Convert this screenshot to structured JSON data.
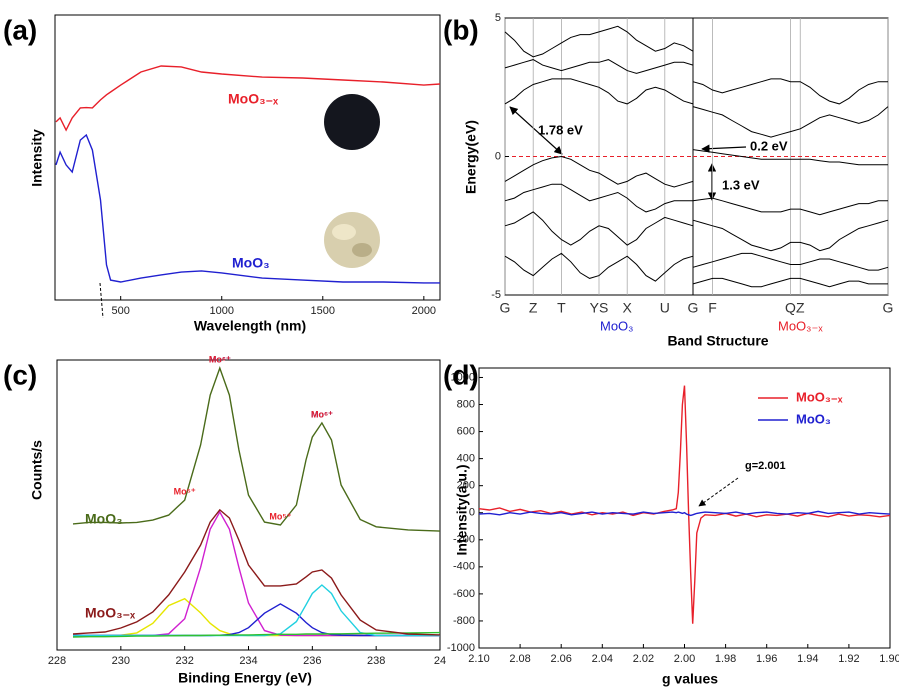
{
  "chart_data": [
    {
      "type": "line",
      "panel_label": "(a)",
      "xlabel": "Wavelength (nm)",
      "ylabel": "Intensity",
      "x": [
        180,
        200,
        230,
        260,
        300,
        330,
        360,
        400,
        430,
        450,
        500,
        600,
        700,
        800,
        900,
        1000,
        1200,
        1400,
        1600,
        1800,
        2000,
        2080
      ],
      "xlim": [
        175,
        2080
      ],
      "xticks": [
        500,
        1000,
        1500,
        2000
      ],
      "ylim": [
        0,
        100
      ],
      "series": [
        {
          "name": "MoO₃₋ₓ",
          "color": "#e8202a",
          "values": [
            62.5,
            63.9,
            59.6,
            63.9,
            67.4,
            67.5,
            67.4,
            70.2,
            72,
            73,
            75.4,
            80,
            82.1,
            81.8,
            80,
            79.3,
            78.2,
            77.9,
            77.2,
            76.5,
            75.4,
            75.8
          ]
        },
        {
          "name": "MoO₃",
          "color": "#2020d0",
          "values": [
            47.4,
            51.9,
            47.4,
            44.9,
            56.1,
            57.9,
            52.6,
            35.1,
            12.3,
            7,
            6.3,
            7.7,
            8.8,
            9.8,
            10.2,
            9.5,
            7.7,
            7,
            6.3,
            6.3,
            6,
            6
          ]
        }
      ]
    },
    {
      "type": "line",
      "panel_label": "(b)",
      "ylabel": "Energy(eV)",
      "categories": [
        "G",
        null,
        null,
        "Z",
        null,
        null,
        "T",
        null,
        null,
        null,
        "YS",
        null,
        null,
        "X",
        null,
        null,
        null,
        "U",
        null,
        null,
        "G"
      ],
      "ylim": [
        -5,
        5
      ],
      "yticks": [
        -5,
        0,
        5
      ],
      "fermi_level": 0,
      "subtitle": "MoO₃",
      "subtitle_color": "#2020d0",
      "annotations": [
        "1.78 eV"
      ],
      "series": [
        {
          "color": "#000000",
          "values": [
            1.9,
            2.1,
            2.4,
            2.6,
            2.7,
            2.8,
            2.8,
            2.8,
            2.7,
            2.6,
            2.5,
            2.3,
            2.0,
            1.9,
            2.1,
            2.4,
            2.5,
            2.4,
            2.2,
            2.0,
            1.9
          ]
        },
        {
          "color": "#000000",
          "values": [
            3.2,
            3.3,
            3.4,
            3.5,
            3.3,
            3.2,
            3.1,
            3.2,
            3.3,
            3.4,
            3.4,
            3.5,
            3.3,
            3.1,
            3.0,
            3.1,
            3.2,
            3.3,
            3.4,
            3.4,
            3.3
          ]
        },
        {
          "color": "#000000",
          "values": [
            4.5,
            4.2,
            3.8,
            3.6,
            3.7,
            3.9,
            4.1,
            4.3,
            4.4,
            4.4,
            4.5,
            4.6,
            4.7,
            4.5,
            4.2,
            4.0,
            3.8,
            3.9,
            4.1,
            4.0,
            3.8
          ]
        },
        {
          "color": "#000000",
          "values": [
            -0.9,
            -0.7,
            -0.5,
            -0.3,
            -0.15,
            -0.05,
            0,
            -0.1,
            -0.3,
            -0.5,
            -0.6,
            -0.8,
            -1.0,
            -0.9,
            -0.7,
            -0.6,
            -0.8,
            -1.0,
            -1.1,
            -1.0,
            -0.9
          ]
        },
        {
          "color": "#000000",
          "values": [
            -1.6,
            -1.5,
            -1.3,
            -1.2,
            -1.1,
            -1.0,
            -1.0,
            -1.2,
            -1.4,
            -1.6,
            -1.5,
            -1.4,
            -1.3,
            -1.5,
            -1.8,
            -2.0,
            -1.9,
            -1.7,
            -1.6,
            -1.6,
            -1.6
          ]
        },
        {
          "color": "#000000",
          "values": [
            -2.5,
            -2.4,
            -2.2,
            -2.0,
            -2.3,
            -2.7,
            -3.0,
            -3.2,
            -3.0,
            -2.7,
            -2.5,
            -2.6,
            -2.9,
            -3.2,
            -3.0,
            -2.6,
            -2.4,
            -2.2,
            -2.3,
            -2.4,
            -2.5
          ]
        },
        {
          "color": "#000000",
          "values": [
            -3.6,
            -3.8,
            -4.1,
            -4.3,
            -4.0,
            -3.7,
            -3.5,
            -3.8,
            -4.2,
            -4.4,
            -4.3,
            -4.0,
            -3.8,
            -3.6,
            -3.9,
            -4.3,
            -4.5,
            -4.2,
            -3.9,
            -3.7,
            -3.6
          ]
        }
      ]
    },
    {
      "type": "line",
      "xlabel": "Band Structure",
      "categories": [
        null,
        null,
        "F",
        null,
        null,
        null,
        null,
        null,
        null,
        null,
        "Q",
        "Z",
        null,
        null,
        null,
        null,
        null,
        null,
        null,
        null,
        "G"
      ],
      "ylim": [
        -5,
        5
      ],
      "fermi_level": 0,
      "subtitle": "MoO₃₋ₓ",
      "subtitle_color": "#e8202a",
      "annotations": [
        "0.2 eV",
        "1.3 eV"
      ],
      "series": [
        {
          "color": "#000000",
          "values": [
            2.7,
            2.6,
            2.4,
            2.3,
            2.4,
            2.5,
            2.6,
            2.7,
            2.8,
            2.8,
            2.7,
            2.7,
            2.5,
            2.2,
            2.0,
            1.9,
            2.1,
            2.4,
            2.6,
            2.7,
            2.7
          ]
        },
        {
          "color": "#000000",
          "values": [
            1.8,
            1.7,
            1.6,
            1.5,
            1.3,
            1.1,
            0.9,
            0.8,
            0.7,
            0.8,
            0.9,
            1.0,
            1.2,
            1.4,
            1.5,
            1.4,
            1.3,
            1.2,
            1.3,
            1.5,
            1.8
          ]
        },
        {
          "color": "#000000",
          "values": [
            0.25,
            0.2,
            0.15,
            0.1,
            0.05,
            0.0,
            -0.05,
            -0.1,
            -0.1,
            -0.1,
            -0.1,
            -0.1,
            -0.1,
            -0.15,
            -0.2,
            -0.2,
            -0.25,
            -0.3,
            -0.3,
            -0.3,
            -0.3
          ]
        },
        {
          "color": "#000000",
          "values": [
            -1.6,
            -1.55,
            -1.5,
            -1.6,
            -1.7,
            -1.8,
            -1.9,
            -2.0,
            -2.0,
            -2.0,
            -1.9,
            -1.9,
            -2.0,
            -2.1,
            -2.0,
            -1.9,
            -1.8,
            -1.7,
            -1.7,
            -1.6,
            -1.6
          ]
        },
        {
          "color": "#000000",
          "values": [
            -2.3,
            -2.4,
            -2.5,
            -2.6,
            -2.8,
            -3.0,
            -3.2,
            -3.3,
            -3.4,
            -3.3,
            -3.1,
            -3.1,
            -3.2,
            -3.4,
            -3.3,
            -3.0,
            -2.8,
            -2.6,
            -2.5,
            -2.4,
            -2.3
          ]
        },
        {
          "color": "#000000",
          "values": [
            -4.0,
            -3.9,
            -3.8,
            -3.7,
            -3.6,
            -3.5,
            -3.5,
            -3.6,
            -3.7,
            -3.8,
            -3.9,
            -3.9,
            -3.8,
            -3.7,
            -3.7,
            -3.8,
            -3.9,
            -4.0,
            -4.1,
            -4.1,
            -4.0
          ]
        },
        {
          "color": "#000000",
          "values": [
            -4.6,
            -4.5,
            -4.4,
            -4.4,
            -4.5,
            -4.6,
            -4.7,
            -4.7,
            -4.6,
            -4.5,
            -4.4,
            -4.4,
            -4.5,
            -4.6,
            -4.7,
            -4.6,
            -4.5,
            -4.5,
            -4.6,
            -4.6,
            -4.6
          ]
        }
      ]
    },
    {
      "type": "line",
      "panel_label": "(c)",
      "xlabel": "Binding Energy (eV)",
      "ylabel": "Counts/s",
      "x": [
        228.5,
        229,
        229.5,
        230,
        230.5,
        231,
        231.5,
        232,
        232.5,
        232.8,
        233.1,
        233.4,
        233.7,
        234,
        234.5,
        235,
        235.5,
        235.8,
        236,
        236.3,
        236.6,
        236.9,
        237.5,
        238,
        239,
        240
      ],
      "xlim": [
        228,
        240
      ],
      "xticks": [
        228,
        230,
        232,
        234,
        236,
        238,
        {
          "value": 240,
          "label": "24"
        }
      ],
      "ylim": [
        0,
        100
      ],
      "series": [
        {
          "name": "MoO₃",
          "color": "#4a6b1a",
          "label_color": "#2020d0",
          "peak_labels": [
            "Mo⁶⁺",
            "Mo⁶⁺"
          ],
          "values": [
            43.5,
            44,
            44,
            43.8,
            44,
            44.8,
            46.5,
            51.7,
            70.7,
            87.9,
            97.2,
            87.9,
            69,
            53.4,
            44.1,
            43.1,
            50,
            65.5,
            73.4,
            78.3,
            72.4,
            56.9,
            45,
            42.5,
            41.4,
            41
          ]
        },
        {
          "color": "#e6e600",
          "label_color": "#e8202a",
          "peak_labels": [
            "Mo⁵⁺"
          ],
          "values": [
            5,
            5,
            5,
            5.1,
            5.9,
            9.2,
            15.3,
            17.7,
            12.8,
            9.2,
            6.7,
            5.6,
            5.1,
            5,
            5,
            5,
            5,
            5,
            5,
            5,
            5,
            5,
            5,
            5,
            5,
            5
          ]
        },
        {
          "color": "#d020d0",
          "label_color": "#e8202a",
          "peak_labels": [
            "Mo⁶⁺"
          ],
          "values": [
            5,
            5,
            5,
            5,
            5,
            5,
            5.6,
            10.8,
            28.5,
            41.7,
            47.6,
            41.7,
            28.5,
            16.2,
            6.7,
            5.1,
            5,
            5,
            5,
            5,
            5,
            5,
            5,
            5,
            5,
            5
          ]
        },
        {
          "color": "#2020d0",
          "label_color": "#e8202a",
          "peak_labels": [
            "Mo⁵⁺"
          ],
          "values": [
            5,
            5,
            5,
            5,
            5,
            5,
            5,
            5,
            5,
            5,
            5.1,
            5.3,
            6,
            7.7,
            12.7,
            15.9,
            12.7,
            9.5,
            7.7,
            6,
            5.3,
            5.1,
            5,
            5,
            5,
            5
          ]
        },
        {
          "color": "#20d0e0",
          "label_color": "#e8202a",
          "peak_labels": [
            "Mo⁶⁺"
          ],
          "values": [
            5,
            5,
            5,
            5,
            5,
            5,
            5,
            5,
            5,
            5,
            5,
            5,
            5,
            5,
            5,
            5.6,
            9.8,
            15.6,
            19.5,
            22.4,
            19.5,
            13.5,
            6,
            5,
            5,
            5
          ]
        },
        {
          "color": "#30c030",
          "values": [
            4.5,
            4.6,
            4.6,
            4.7,
            4.8,
            4.8,
            4.9,
            5.0,
            5.0,
            5.1,
            5.1,
            5.1,
            5.2,
            5.2,
            5.3,
            5.4,
            5.4,
            5.5,
            5.5,
            5.5,
            5.6,
            5.6,
            5.7,
            5.8,
            5.9,
            6.0
          ]
        },
        {
          "name": "MoO₃₋ₓ",
          "color": "#8b1a1a",
          "values": [
            5.5,
            5.9,
            6.2,
            7.6,
            9.7,
            13.1,
            19,
            26.9,
            36.2,
            44.1,
            48.3,
            45.5,
            37.9,
            29.3,
            22.1,
            22.1,
            22.8,
            25.2,
            26.9,
            27.6,
            24.8,
            19,
            10.3,
            6.9,
            5.5,
            5.2
          ]
        }
      ]
    },
    {
      "type": "line",
      "panel_label": "(d)",
      "xlabel": "g values",
      "ylabel": "Intensity(a.u.)",
      "x": [
        2.1,
        2.095,
        2.09,
        2.085,
        2.08,
        2.075,
        2.07,
        2.065,
        2.06,
        2.055,
        2.05,
        2.045,
        2.04,
        2.035,
        2.03,
        2.025,
        2.02,
        2.015,
        2.01,
        2.006,
        2.004,
        2.003,
        2.002,
        2.001,
        2.0,
        1.999,
        1.998,
        1.997,
        1.996,
        1.995,
        1.994,
        1.992,
        1.99,
        1.985,
        1.98,
        1.975,
        1.97,
        1.965,
        1.96,
        1.955,
        1.95,
        1.945,
        1.94,
        1.935,
        1.93,
        1.925,
        1.92,
        1.915,
        1.91,
        1.905,
        1.9
      ],
      "xlim": [
        2.1,
        1.9
      ],
      "xticks": [
        {
          "value": 2.1,
          "label": "2.10"
        },
        2.08,
        2.06,
        2.04,
        2.02,
        {
          "value": 2,
          "label": "2.00"
        },
        1.98,
        1.96,
        1.94,
        1.92,
        {
          "value": 1.9,
          "label": "1.90"
        }
      ],
      "ylim": [
        -1000,
        1070
      ],
      "yticks": [
        -1000,
        -800,
        -600,
        -400,
        -200,
        0,
        200,
        400,
        600,
        800,
        1000
      ],
      "legend": "upper right",
      "annotations": [
        "g=2.001"
      ],
      "series": [
        {
          "name": "MoO₃₋ₓ",
          "color": "#e8202a",
          "values": [
            30,
            20,
            35,
            10,
            25,
            5,
            15,
            -5,
            10,
            -10,
            5,
            -15,
            0,
            -10,
            5,
            -20,
            0,
            -10,
            10,
            20,
            30,
            150,
            450,
            800,
            940,
            500,
            0,
            -450,
            -820,
            -500,
            -150,
            -40,
            -15,
            -20,
            -5,
            -25,
            -10,
            -30,
            -15,
            -20,
            -10,
            -25,
            -5,
            -20,
            -30,
            -10,
            -25,
            -15,
            -20,
            -30,
            -20
          ]
        },
        {
          "name": "MoO₃",
          "color": "#2020d0",
          "values": [
            -10,
            -5,
            -15,
            0,
            -10,
            5,
            -5,
            -10,
            0,
            -15,
            -5,
            5,
            -10,
            0,
            -5,
            -10,
            5,
            -5,
            0,
            5,
            0,
            5,
            0,
            -5,
            0,
            -10,
            -15,
            -20,
            -15,
            -10,
            -5,
            0,
            5,
            0,
            -5,
            5,
            -10,
            0,
            5,
            -5,
            -10,
            0,
            -5,
            10,
            -5,
            0,
            5,
            -10,
            0,
            -5,
            -10
          ]
        }
      ]
    }
  ]
}
